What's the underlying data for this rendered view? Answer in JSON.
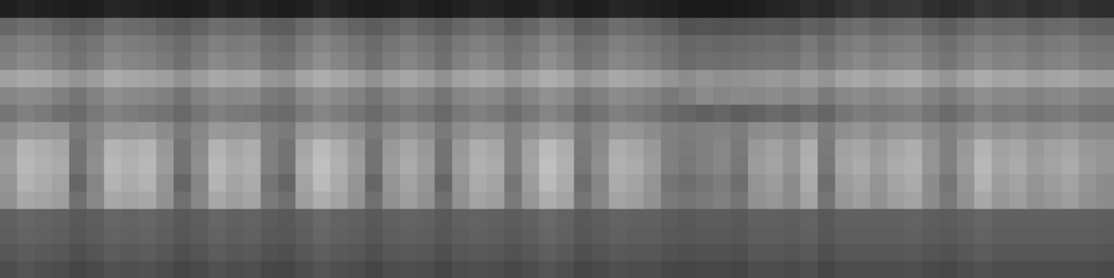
{
  "chart_data": {
    "type": "heatmap",
    "color": "gray",
    "grid": false,
    "tick_labels": false,
    "zlim": [
      0,
      100
    ],
    "cells": [
      [
        12,
        14,
        13,
        12,
        11,
        12,
        15,
        14,
        13,
        12,
        11,
        12,
        15,
        13,
        14,
        12,
        11,
        13,
        16,
        14,
        12,
        11,
        12,
        14,
        12,
        11,
        13,
        15,
        14,
        12,
        13,
        16,
        14,
        11,
        12,
        15,
        14,
        13,
        12,
        10,
        10,
        10,
        11,
        12,
        14,
        15,
        18,
        16,
        20,
        22,
        20,
        21,
        22,
        19,
        17,
        19,
        22,
        20,
        21,
        19,
        20,
        21,
        19,
        18
      ],
      [
        40,
        43,
        42,
        39,
        37,
        39,
        44,
        42,
        41,
        38,
        36,
        39,
        43,
        41,
        42,
        37,
        36,
        41,
        45,
        42,
        39,
        36,
        39,
        42,
        39,
        36,
        40,
        43,
        41,
        37,
        40,
        45,
        42,
        36,
        38,
        43,
        41,
        39,
        36,
        32,
        33,
        32,
        33,
        34,
        35,
        34,
        38,
        36,
        41,
        43,
        40,
        42,
        43,
        39,
        36,
        40,
        43,
        41,
        42,
        39,
        41,
        42,
        39,
        38
      ],
      [
        47,
        50,
        49,
        46,
        43,
        46,
        51,
        49,
        48,
        45,
        42,
        46,
        50,
        48,
        49,
        44,
        42,
        48,
        52,
        49,
        46,
        42,
        46,
        49,
        46,
        42,
        47,
        50,
        48,
        44,
        47,
        52,
        49,
        43,
        45,
        50,
        48,
        46,
        43,
        40,
        41,
        40,
        41,
        42,
        43,
        42,
        47,
        43,
        48,
        50,
        47,
        49,
        50,
        46,
        43,
        47,
        50,
        48,
        49,
        46,
        48,
        49,
        46,
        45
      ],
      [
        50,
        54,
        52,
        49,
        45,
        49,
        55,
        52,
        51,
        48,
        44,
        49,
        54,
        51,
        52,
        46,
        45,
        51,
        56,
        52,
        49,
        44,
        49,
        52,
        49,
        44,
        50,
        54,
        51,
        46,
        50,
        56,
        52,
        45,
        48,
        53,
        51,
        49,
        45,
        42,
        44,
        43,
        44,
        45,
        46,
        45,
        50,
        46,
        51,
        54,
        51,
        53,
        54,
        49,
        46,
        50,
        54,
        51,
        52,
        49,
        51,
        52,
        49,
        48
      ],
      [
        63,
        66,
        65,
        62,
        58,
        61,
        67,
        65,
        64,
        62,
        57,
        61,
        66,
        64,
        65,
        59,
        57,
        64,
        68,
        65,
        62,
        57,
        62,
        65,
        62,
        57,
        63,
        66,
        64,
        59,
        63,
        68,
        65,
        58,
        61,
        66,
        64,
        62,
        58,
        55,
        58,
        56,
        57,
        58,
        60,
        58,
        62,
        58,
        64,
        66,
        63,
        66,
        67,
        62,
        58,
        63,
        67,
        64,
        65,
        62,
        64,
        65,
        62,
        61
      ],
      [
        52,
        55,
        54,
        50,
        46,
        51,
        56,
        54,
        53,
        50,
        45,
        51,
        55,
        53,
        54,
        48,
        46,
        53,
        57,
        54,
        51,
        46,
        51,
        54,
        51,
        46,
        52,
        55,
        53,
        48,
        52,
        57,
        54,
        47,
        50,
        55,
        53,
        51,
        47,
        50,
        55,
        52,
        54,
        53,
        55,
        52,
        55,
        48,
        53,
        55,
        52,
        55,
        56,
        51,
        48,
        52,
        56,
        53,
        54,
        51,
        53,
        54,
        51,
        50
      ],
      [
        46,
        50,
        48,
        44,
        42,
        47,
        51,
        49,
        47,
        45,
        41,
        46,
        50,
        48,
        47,
        43,
        42,
        48,
        52,
        49,
        46,
        42,
        46,
        49,
        46,
        41,
        47,
        50,
        48,
        43,
        47,
        52,
        49,
        42,
        45,
        50,
        48,
        46,
        42,
        40,
        38,
        40,
        37,
        39,
        42,
        40,
        44,
        40,
        46,
        49,
        47,
        49,
        50,
        46,
        42,
        46,
        51,
        48,
        49,
        46,
        48,
        49,
        46,
        45
      ],
      [
        55,
        60,
        59,
        58,
        48,
        53,
        60,
        59,
        60,
        55,
        48,
        53,
        60,
        58,
        59,
        50,
        48,
        58,
        61,
        59,
        55,
        48,
        55,
        58,
        55,
        48,
        55,
        59,
        58,
        50,
        56,
        61,
        59,
        49,
        53,
        59,
        58,
        55,
        50,
        49,
        50,
        51,
        49,
        55,
        56,
        54,
        59,
        49,
        56,
        58,
        55,
        58,
        59,
        54,
        50,
        55,
        60,
        56,
        58,
        55,
        56,
        58,
        55,
        54
      ],
      [
        60,
        70,
        68,
        65,
        45,
        55,
        70,
        68,
        70,
        60,
        45,
        55,
        70,
        65,
        68,
        50,
        45,
        65,
        73,
        68,
        60,
        45,
        60,
        65,
        60,
        45,
        60,
        68,
        65,
        50,
        63,
        73,
        68,
        48,
        55,
        68,
        65,
        60,
        50,
        48,
        50,
        53,
        48,
        60,
        63,
        58,
        68,
        48,
        63,
        65,
        60,
        65,
        68,
        58,
        50,
        60,
        70,
        63,
        65,
        60,
        63,
        65,
        60,
        58
      ],
      [
        61,
        72,
        69,
        67,
        45,
        56,
        72,
        69,
        72,
        61,
        45,
        56,
        72,
        67,
        69,
        50,
        45,
        67,
        75,
        69,
        61,
        45,
        61,
        67,
        61,
        45,
        61,
        69,
        67,
        50,
        64,
        75,
        69,
        47,
        56,
        69,
        67,
        61,
        50,
        47,
        50,
        53,
        47,
        61,
        64,
        58,
        69,
        47,
        64,
        67,
        61,
        67,
        69,
        58,
        50,
        61,
        72,
        64,
        67,
        61,
        64,
        67,
        61,
        58
      ],
      [
        58,
        70,
        67,
        64,
        40,
        52,
        70,
        67,
        70,
        58,
        40,
        52,
        70,
        64,
        67,
        46,
        40,
        64,
        73,
        67,
        58,
        40,
        58,
        64,
        58,
        40,
        58,
        67,
        64,
        46,
        61,
        73,
        67,
        43,
        52,
        67,
        64,
        58,
        46,
        43,
        46,
        49,
        43,
        58,
        61,
        55,
        67,
        43,
        61,
        64,
        58,
        64,
        67,
        55,
        46,
        58,
        70,
        61,
        64,
        58,
        61,
        64,
        58,
        55
      ],
      [
        57,
        66,
        64,
        62,
        44,
        53,
        66,
        64,
        66,
        57,
        44,
        53,
        66,
        62,
        64,
        48,
        44,
        62,
        68,
        64,
        57,
        44,
        57,
        62,
        57,
        44,
        57,
        64,
        62,
        48,
        59,
        68,
        64,
        46,
        53,
        64,
        62,
        57,
        48,
        46,
        48,
        50,
        46,
        57,
        59,
        55,
        64,
        46,
        59,
        62,
        57,
        62,
        64,
        55,
        48,
        57,
        66,
        59,
        62,
        57,
        59,
        62,
        57,
        55
      ],
      [
        38,
        40,
        39,
        38,
        35,
        37,
        40,
        39,
        40,
        38,
        35,
        37,
        40,
        38,
        39,
        36,
        35,
        38,
        41,
        39,
        38,
        35,
        38,
        39,
        38,
        35,
        38,
        39,
        38,
        36,
        38,
        41,
        39,
        35,
        37,
        39,
        38,
        38,
        36,
        35,
        36,
        36,
        35,
        38,
        38,
        37,
        39,
        35,
        38,
        38,
        38,
        38,
        39,
        37,
        36,
        38,
        40,
        38,
        38,
        38,
        38,
        38,
        38,
        37
      ],
      [
        37,
        39,
        38,
        37,
        34,
        36,
        39,
        38,
        39,
        37,
        34,
        36,
        39,
        37,
        38,
        35,
        34,
        37,
        40,
        38,
        37,
        34,
        37,
        38,
        37,
        34,
        37,
        38,
        37,
        35,
        37,
        40,
        38,
        34,
        36,
        38,
        37,
        37,
        35,
        34,
        35,
        35,
        34,
        37,
        37,
        36,
        38,
        34,
        37,
        37,
        37,
        37,
        38,
        36,
        35,
        37,
        39,
        37,
        37,
        37,
        37,
        37,
        37,
        36
      ],
      [
        34,
        36,
        35,
        34,
        31,
        33,
        36,
        35,
        36,
        34,
        31,
        33,
        36,
        34,
        35,
        32,
        31,
        34,
        37,
        35,
        34,
        31,
        34,
        35,
        34,
        31,
        34,
        35,
        34,
        32,
        34,
        37,
        35,
        31,
        33,
        35,
        34,
        34,
        32,
        31,
        32,
        32,
        31,
        34,
        34,
        33,
        35,
        31,
        34,
        34,
        34,
        34,
        35,
        33,
        32,
        34,
        36,
        34,
        34,
        34,
        34,
        34,
        34,
        33
      ],
      [
        30,
        33,
        31,
        30,
        27,
        29,
        32,
        31,
        32,
        30,
        27,
        29,
        32,
        30,
        31,
        28,
        27,
        30,
        33,
        31,
        30,
        27,
        30,
        31,
        30,
        27,
        30,
        31,
        30,
        28,
        30,
        33,
        31,
        27,
        29,
        31,
        30,
        30,
        28,
        27,
        28,
        28,
        27,
        30,
        30,
        29,
        31,
        27,
        30,
        30,
        30,
        30,
        31,
        29,
        28,
        30,
        32,
        30,
        30,
        30,
        30,
        30,
        30,
        29
      ]
    ]
  }
}
